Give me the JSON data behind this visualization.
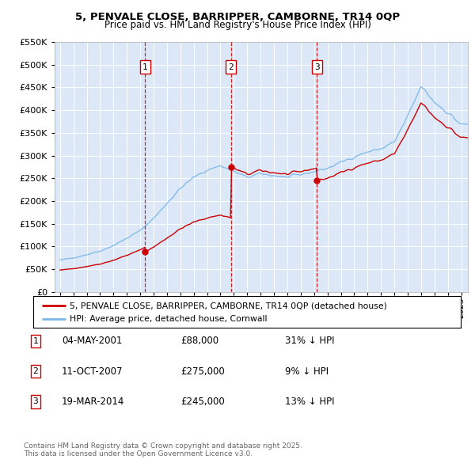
{
  "title_line1": "5, PENVALE CLOSE, BARRIPPER, CAMBORNE, TR14 0QP",
  "title_line2": "Price paid vs. HM Land Registry's House Price Index (HPI)",
  "plot_bg_color": "#dce8f8",
  "red_line_label": "5, PENVALE CLOSE, BARRIPPER, CAMBORNE, TR14 0QP (detached house)",
  "blue_line_label": "HPI: Average price, detached house, Cornwall",
  "transactions": [
    {
      "num": 1,
      "date": "04-MAY-2001",
      "price": 88000,
      "pct": "31%",
      "dir": "↓",
      "x": 2001.37
    },
    {
      "num": 2,
      "date": "11-OCT-2007",
      "price": 275000,
      "pct": "9%",
      "dir": "↓",
      "x": 2007.78
    },
    {
      "num": 3,
      "date": "19-MAR-2014",
      "price": 245000,
      "pct": "13%",
      "dir": "↓",
      "x": 2014.21
    }
  ],
  "footer_line1": "Contains HM Land Registry data © Crown copyright and database right 2025.",
  "footer_line2": "This data is licensed under the Open Government Licence v3.0.",
  "ylim_max": 550000,
  "ylim_min": 0,
  "xlim_min": 1994.6,
  "xlim_max": 2025.5
}
